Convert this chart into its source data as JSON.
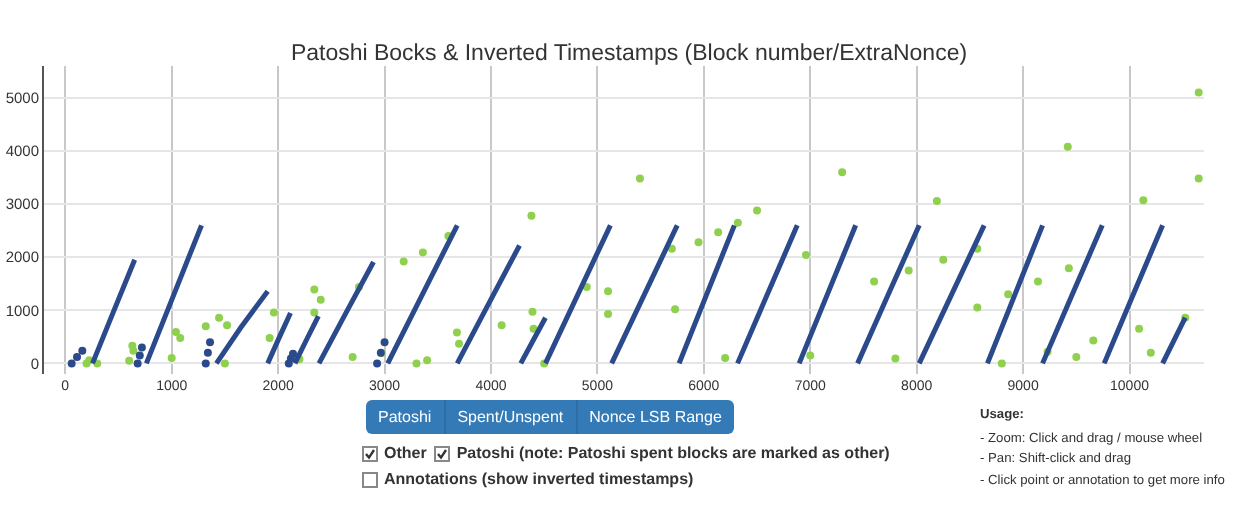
{
  "chart_data": {
    "type": "scatter",
    "title": "Patoshi Bocks & Inverted Timestamps (Block number/ExtraNonce)",
    "xlim": [
      -200,
      10700
    ],
    "ylim": [
      -200,
      5600
    ],
    "xticks": [
      0,
      1000,
      2000,
      3000,
      4000,
      5000,
      6000,
      7000,
      8000,
      9000,
      10000
    ],
    "yticks": [
      0,
      1000,
      2000,
      3000,
      4000,
      5000
    ],
    "grid": true,
    "marker": "circle",
    "series": [
      {
        "type": "scatter",
        "color": "#8fd14f",
        "x": [
          300,
          1320,
          2340,
          3360,
          4380,
          5400,
          3300,
          4100,
          4900,
          5700,
          6500,
          7300,
          4500,
          5730,
          6960,
          8190,
          9420,
          10650,
          1500,
          1920,
          2340,
          2760,
          3180,
          3600,
          200,
          640,
          1080,
          1520,
          1960,
          2400,
          5950,
          6135,
          6320,
          7600,
          7925,
          8250,
          8570,
          8570,
          8860,
          9140,
          9430,
          8800,
          9230,
          9660,
          10090,
          10524,
          225,
          630,
          1040,
          1445,
          2970,
          3680,
          4390,
          5100,
          3700,
          4400,
          5100,
          600,
          1000,
          2200,
          2700,
          3400,
          6200,
          7000,
          7800,
          9500,
          10200,
          10650,
          10130
        ],
        "values": [
          0,
          700,
          1390,
          2090,
          2780,
          3480,
          0,
          720,
          1440,
          2160,
          2880,
          3600,
          0,
          1020,
          2040,
          3060,
          4080,
          5100,
          0,
          480,
          960,
          1440,
          1920,
          2400,
          0,
          240,
          480,
          720,
          960,
          1200,
          2280,
          2470,
          2650,
          1540,
          1750,
          1950,
          2160,
          1050,
          1300,
          1540,
          1790,
          0,
          220,
          430,
          650,
          860,
          60,
          330,
          590,
          860,
          190,
          580,
          970,
          1360,
          370,
          650,
          930,
          50,
          100,
          80,
          120,
          60,
          100,
          150,
          90,
          120,
          200,
          3480,
          3070
        ]
      },
      {
        "type": "line",
        "color": "#2b4a8b",
        "marker": "none",
        "line_style": "solid",
        "x": [
          256,
          454,
          652,
          null,
          762,
          1021,
          1280,
          null,
          1420,
          1651,
          1902,
          null,
          1902,
          2009,
          2116,
          null,
          2158,
          2268,
          2378,
          null,
          2384,
          2640,
          2896,
          null,
          3030,
          3356,
          3683,
          null,
          3683,
          3975,
          4268,
          null,
          4280,
          4396,
          4512,
          null,
          4512,
          4817,
          5122,
          null,
          5134,
          5442,
          5750,
          null,
          5768,
          6027,
          6287,
          null,
          6317,
          6597,
          6878,
          null,
          6896,
          7161,
          7427,
          null,
          7445,
          7734,
          8024,
          null,
          8024,
          8329,
          8634,
          null,
          8665,
          8924,
          9183,
          null,
          9183,
          9463,
          9744,
          null,
          9762,
          10036,
          10311,
          null,
          10311,
          10417,
          10524
        ],
        "values": [
          0,
          980,
          1950,
          null,
          0,
          1300,
          2600,
          null,
          0,
          680,
          1360,
          null,
          0,
          480,
          950,
          null,
          0,
          450,
          890,
          null,
          0,
          960,
          1910,
          null,
          0,
          1300,
          2600,
          null,
          0,
          1110,
          2220,
          null,
          0,
          430,
          860,
          null,
          0,
          1300,
          2600,
          null,
          0,
          1300,
          2600,
          null,
          0,
          1300,
          2600,
          null,
          0,
          1300,
          2600,
          null,
          0,
          1300,
          2600,
          null,
          0,
          1300,
          2600,
          null,
          0,
          1300,
          2600,
          null,
          0,
          1300,
          2600,
          null,
          0,
          1300,
          2600,
          null,
          0,
          1300,
          2600,
          null,
          0,
          430,
          860
        ]
      },
      {
        "type": "scatter",
        "color": "#2b4a8b",
        "x": [
          60,
          110,
          160,
          680,
          700,
          720,
          1320,
          1340,
          1360,
          2100,
          2120,
          2140,
          2930,
          2965,
          3000
        ],
        "values": [
          0,
          120,
          240,
          0,
          150,
          300,
          0,
          200,
          400,
          0,
          90,
          180,
          0,
          200,
          400
        ]
      }
    ],
    "annotations": [
      "Patoshi",
      "Spent/Unspent",
      "Nonce LSB Range",
      "Other",
      "Patoshi (note: Patoshi spent blocks are marked as other)",
      "Annotations (show inverted timestamps)",
      "Usage:",
      "- Zoom: Click and drag / mouse wheel",
      "- Pan: Shift-click and drag",
      "- Click point or annotation to get more info"
    ]
  }
}
